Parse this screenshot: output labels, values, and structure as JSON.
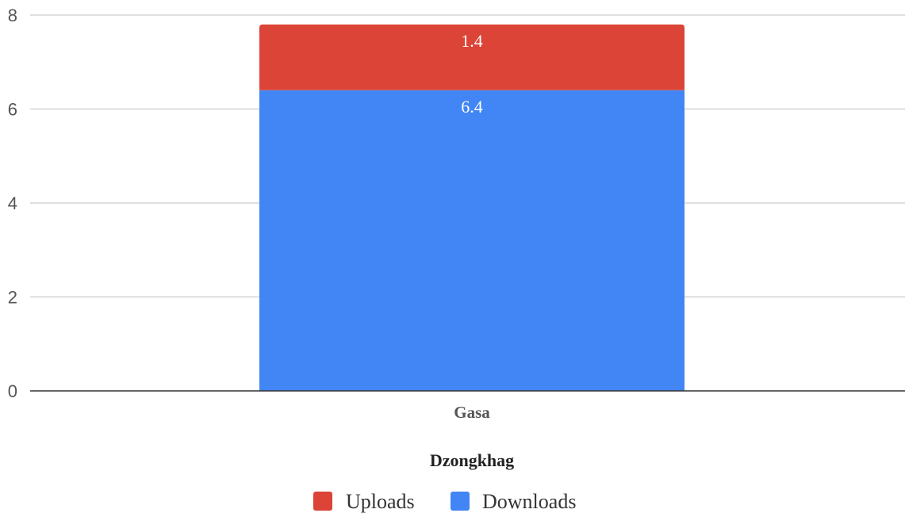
{
  "chart_data": {
    "type": "bar",
    "stacked": true,
    "categories": [
      "Gasa"
    ],
    "series": [
      {
        "name": "Downloads",
        "values": [
          6.4
        ],
        "color": "#4285f4",
        "data_labels": [
          "6.4"
        ]
      },
      {
        "name": "Uploads",
        "values": [
          1.4
        ],
        "color": "#db4437",
        "data_labels": [
          "1.4"
        ]
      }
    ],
    "xlabel": "Dzongkhag",
    "ylabel": "",
    "ylim": [
      0,
      8
    ],
    "yticks": [
      "0",
      "2",
      "4",
      "6",
      "8"
    ],
    "grid": true,
    "legend": {
      "position": "bottom",
      "order": [
        "Uploads",
        "Downloads"
      ]
    }
  }
}
